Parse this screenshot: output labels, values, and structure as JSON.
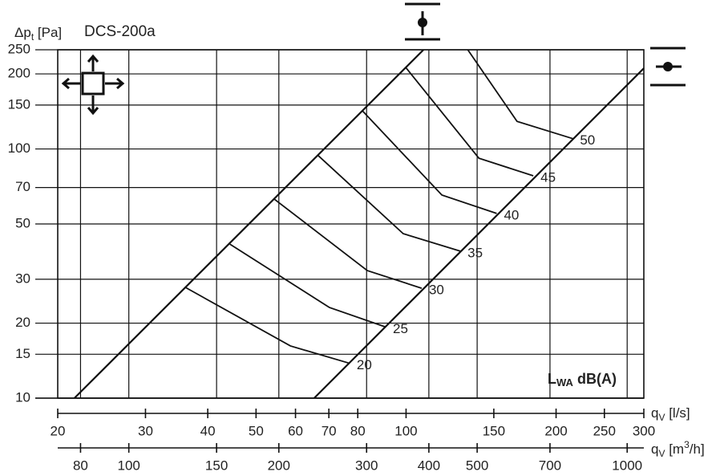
{
  "chart_data": {
    "type": "line",
    "title": "DCS-200a",
    "y_label": {
      "main": "Δp",
      "sub": "t",
      "unit": " [Pa]"
    },
    "x_label": {
      "main": "q",
      "sub": "V",
      "unit": " [l/s]"
    },
    "x2_label": {
      "main": "q",
      "sub": "V",
      "unit": " [m",
      "sup": "3",
      "unit_end": "/h]"
    },
    "legend_title": {
      "main": "L",
      "sub": "WA",
      "rest": " dB(A)"
    },
    "log_x": true,
    "log_y": true,
    "grid": true,
    "color": "#111111",
    "xlim": [
      20,
      300
    ],
    "xticks": [
      20,
      30,
      40,
      50,
      60,
      70,
      80,
      100,
      150,
      200,
      250,
      300
    ],
    "x2lim": [
      72,
      1080
    ],
    "x2ticks": [
      80,
      100,
      150,
      200,
      300,
      400,
      500,
      700,
      1000
    ],
    "ylim": [
      10,
      250
    ],
    "yticks": [
      10,
      15,
      20,
      30,
      50,
      70,
      100,
      150,
      200,
      250
    ],
    "limit_lines": [
      {
        "x": [
          21.6,
          108.4
        ],
        "values": [
          10,
          250
        ]
      },
      {
        "x": [
          65.4,
          300
        ],
        "values": [
          10,
          210.7
        ]
      }
    ],
    "series": [
      {
        "name": "20",
        "x": [
          36.1,
          58.6,
          77.0
        ],
        "values": [
          27.8,
          16.2,
          13.8
        ]
      },
      {
        "name": "25",
        "x": [
          44.3,
          70.2,
          91.0
        ],
        "values": [
          41.5,
          23.1,
          19.3
        ]
      },
      {
        "name": "30",
        "x": [
          54.4,
          83.6,
          107.5
        ],
        "values": [
          62.9,
          32.5,
          27.6
        ]
      },
      {
        "name": "35",
        "x": [
          66.7,
          98.7,
          128.5
        ],
        "values": [
          93.9,
          45.7,
          38.9
        ]
      },
      {
        "name": "40",
        "x": [
          81.8,
          118,
          152
        ],
        "values": [
          142,
          65.3,
          55.1
        ]
      },
      {
        "name": "45",
        "x": [
          99.9,
          140,
          180
        ],
        "values": [
          212,
          91.8,
          78.0
        ]
      },
      {
        "name": "50",
        "x": [
          133,
          167,
          216
        ],
        "values": [
          250,
          129,
          110
        ]
      }
    ]
  }
}
